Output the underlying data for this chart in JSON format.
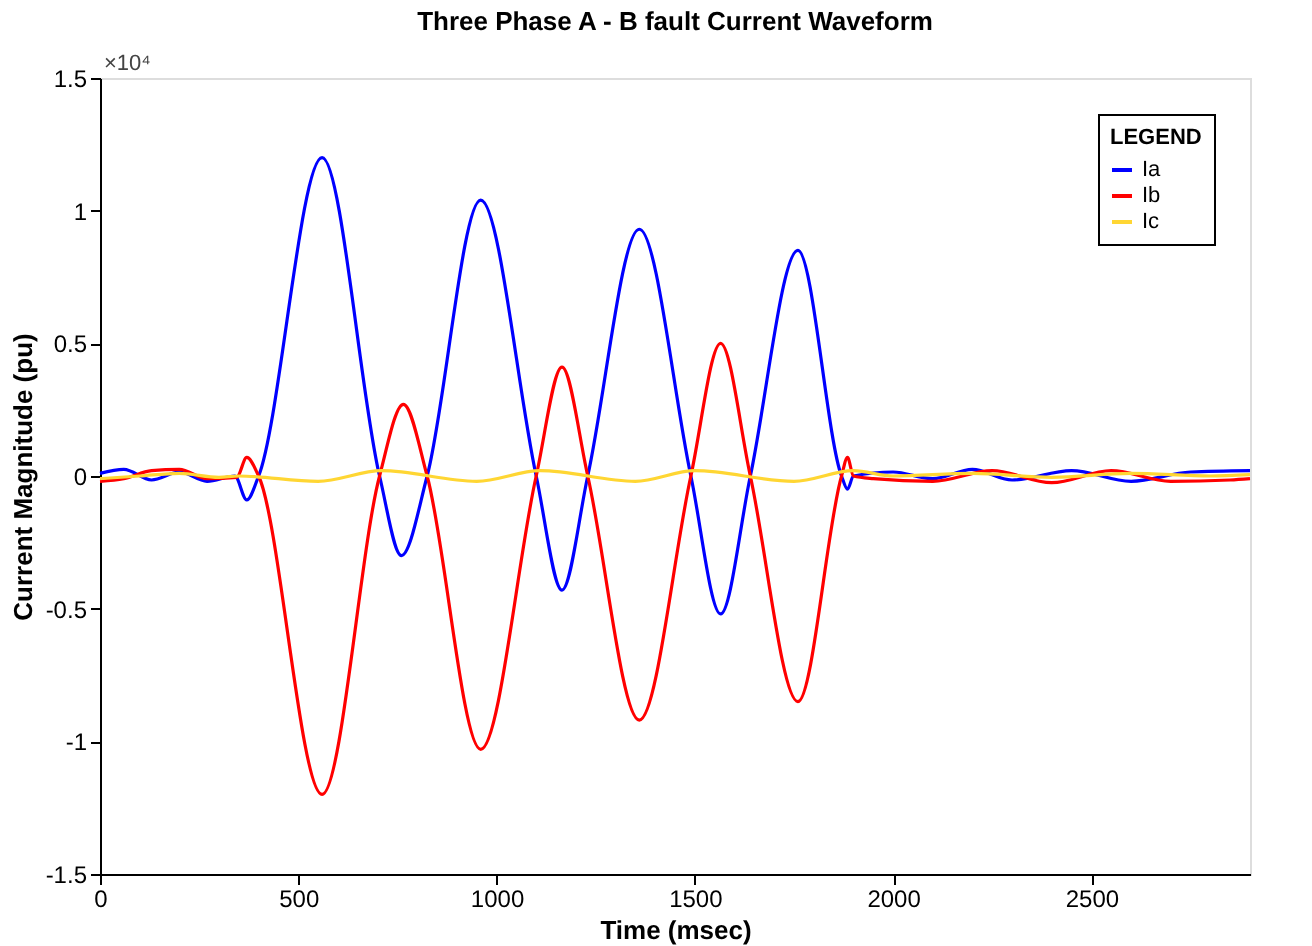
{
  "chart_data": {
    "type": "line",
    "title": "Three Phase A - B fault Current Waveform",
    "xlabel": "Time (msec)",
    "ylabel": "Current Magnitude (pu)",
    "legend_title": "LEGEND",
    "annotations": [
      "×10⁴"
    ],
    "xlim": [
      0,
      2900
    ],
    "xticks": [
      0,
      500,
      1000,
      1500,
      2000,
      2500
    ],
    "ylim": [
      -1.5,
      1.5
    ],
    "yticks": [
      -1.5,
      -1,
      -0.5,
      0,
      0.5,
      1,
      1.5
    ],
    "grid": false,
    "legend": "top right",
    "marker": "none",
    "line_style": "solid",
    "series": [
      {
        "name": "Ia",
        "color": "#0000ff",
        "x": [
          0,
          60,
          130,
          200,
          270,
          340,
          370,
          400,
          560,
          705,
          760,
          825,
          960,
          1100,
          1165,
          1230,
          1360,
          1490,
          1565,
          1640,
          1760,
          1870,
          1885,
          1900,
          2000,
          2100,
          2200,
          2300,
          2450,
          2600,
          2750,
          2900
        ],
        "values": [
          0.01,
          0.025,
          -0.015,
          0.015,
          -0.02,
          0,
          -0.09,
          0,
          1.2,
          0,
          -0.3,
          0,
          1.04,
          0,
          -0.43,
          0,
          0.93,
          0,
          -0.52,
          0,
          0.85,
          0,
          -0.05,
          0,
          0.015,
          -0.01,
          0.025,
          -0.015,
          0.02,
          -0.02,
          0.015,
          0.02
        ]
      },
      {
        "name": "Ib",
        "color": "#ff0000",
        "x": [
          0,
          60,
          130,
          200,
          270,
          345,
          370,
          400,
          560,
          705,
          765,
          825,
          960,
          1100,
          1165,
          1230,
          1360,
          1490,
          1565,
          1640,
          1760,
          1870,
          1885,
          1900,
          1950,
          2100,
          2250,
          2400,
          2550,
          2700,
          2850,
          2900
        ],
        "values": [
          -0.02,
          -0.01,
          0.02,
          0.025,
          -0.01,
          -0.005,
          0.07,
          0,
          -1.2,
          0,
          0.27,
          0,
          -1.03,
          0,
          0.41,
          0,
          -0.92,
          0,
          0.5,
          0,
          -0.85,
          0,
          0.07,
          0,
          -0.01,
          -0.02,
          0.02,
          -0.025,
          0.02,
          -0.02,
          -0.015,
          -0.01
        ]
      },
      {
        "name": "Ic",
        "color": "#ffd633",
        "x": [
          0,
          100,
          200,
          300,
          350,
          550,
          710,
          950,
          1110,
          1350,
          1500,
          1750,
          1900,
          2000,
          2200,
          2400,
          2600,
          2800,
          2900
        ],
        "values": [
          -0.01,
          0,
          0.01,
          -0.005,
          0,
          -0.02,
          0.02,
          -0.02,
          0.02,
          -0.02,
          0.02,
          -0.02,
          0.02,
          0,
          0.01,
          -0.005,
          0.01,
          0,
          0.005
        ]
      }
    ]
  }
}
